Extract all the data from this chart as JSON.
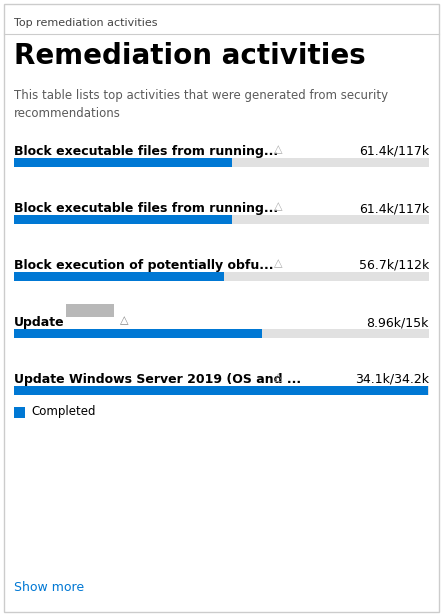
{
  "card_title": "Top remediation activities",
  "main_title": "Remediation activities",
  "subtitle": "This table lists top activities that were generated from security\nrecommendations",
  "subtitle_color": "#5a5a5a",
  "title_color": "#000000",
  "card_title_color": "#444444",
  "background_color": "#ffffff",
  "border_color": "#cccccc",
  "bar_blue": "#0078d4",
  "bar_gray": "#e1e1e1",
  "show_more_color": "#0078d4",
  "rows": [
    {
      "label": "Block executable files from running...",
      "warning": true,
      "value_text": "61.4k/117k",
      "completed": 61.4,
      "total": 117.0,
      "has_redacted": false
    },
    {
      "label": "Block executable files from running...",
      "warning": true,
      "value_text": "61.4k/117k",
      "completed": 61.4,
      "total": 117.0,
      "has_redacted": false
    },
    {
      "label": "Block execution of potentially obfu...",
      "warning": true,
      "value_text": "56.7k/112k",
      "completed": 56.7,
      "total": 112.0,
      "has_redacted": false
    },
    {
      "label": "Update",
      "warning": true,
      "value_text": "8.96k/15k",
      "completed": 8.96,
      "total": 15.0,
      "has_redacted": true
    },
    {
      "label": "Update Windows Server 2019 (OS and ...",
      "warning": true,
      "value_text": "34.1k/34.2k",
      "completed": 34.1,
      "total": 34.2,
      "has_redacted": false
    }
  ],
  "legend_label": "Completed",
  "show_more_text": "Show more",
  "fig_width": 4.43,
  "fig_height": 6.16,
  "dpi": 100
}
